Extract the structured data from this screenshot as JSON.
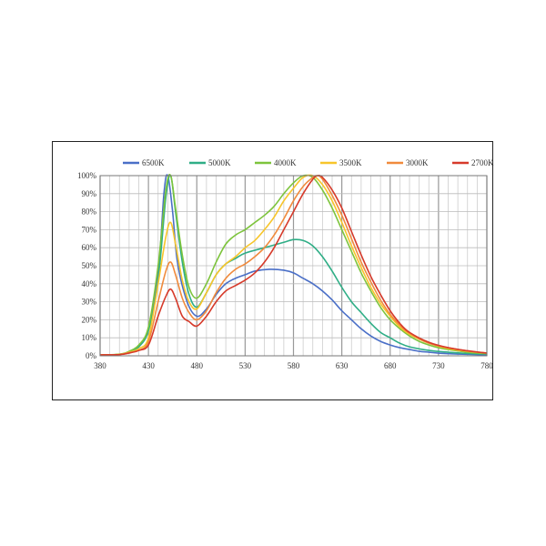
{
  "chart_data": {
    "type": "line",
    "title": "",
    "xlabel": "",
    "ylabel": "",
    "xlim": [
      380,
      780
    ],
    "ylim": [
      0,
      100
    ],
    "grid": true,
    "legend_position": "top",
    "x_ticks": [
      "380",
      "430",
      "480",
      "530",
      "580",
      "630",
      "680",
      "730",
      "780"
    ],
    "x_tick_values": [
      380,
      430,
      480,
      530,
      580,
      630,
      680,
      730,
      780
    ],
    "y_ticks": [
      "0%",
      "10%",
      "20%",
      "30%",
      "40%",
      "50%",
      "60%",
      "70%",
      "80%",
      "90%",
      "100%"
    ],
    "y_tick_values": [
      0,
      10,
      20,
      30,
      40,
      50,
      60,
      70,
      80,
      90,
      100
    ],
    "series": [
      {
        "name": "6500K",
        "color": "#4a6fc7",
        "points": [
          [
            380,
            0.5
          ],
          [
            400,
            0.8
          ],
          [
            410,
            2
          ],
          [
            420,
            5
          ],
          [
            430,
            15
          ],
          [
            440,
            45
          ],
          [
            446,
            90
          ],
          [
            450,
            100
          ],
          [
            455,
            80
          ],
          [
            460,
            52
          ],
          [
            470,
            30
          ],
          [
            480,
            22
          ],
          [
            490,
            26
          ],
          [
            500,
            34
          ],
          [
            510,
            40
          ],
          [
            520,
            43
          ],
          [
            530,
            45
          ],
          [
            540,
            47
          ],
          [
            555,
            48
          ],
          [
            570,
            47.5
          ],
          [
            580,
            46
          ],
          [
            590,
            43
          ],
          [
            600,
            40
          ],
          [
            610,
            36
          ],
          [
            620,
            31
          ],
          [
            630,
            25
          ],
          [
            640,
            20
          ],
          [
            650,
            15
          ],
          [
            660,
            11
          ],
          [
            670,
            8
          ],
          [
            680,
            6
          ],
          [
            690,
            4.5
          ],
          [
            700,
            3.5
          ],
          [
            710,
            2.5
          ],
          [
            720,
            2
          ],
          [
            730,
            1.5
          ],
          [
            750,
            1
          ],
          [
            780,
            0.5
          ]
        ]
      },
      {
        "name": "5000K",
        "color": "#2fae86",
        "points": [
          [
            380,
            0.5
          ],
          [
            400,
            0.8
          ],
          [
            410,
            2
          ],
          [
            420,
            5
          ],
          [
            430,
            14
          ],
          [
            440,
            42
          ],
          [
            448,
            88
          ],
          [
            453,
            100
          ],
          [
            458,
            80
          ],
          [
            465,
            52
          ],
          [
            472,
            34
          ],
          [
            480,
            27
          ],
          [
            490,
            35
          ],
          [
            500,
            45
          ],
          [
            510,
            51
          ],
          [
            520,
            54
          ],
          [
            530,
            57
          ],
          [
            550,
            60
          ],
          [
            570,
            63
          ],
          [
            580,
            64.5
          ],
          [
            590,
            64
          ],
          [
            600,
            61
          ],
          [
            610,
            55
          ],
          [
            620,
            47
          ],
          [
            630,
            38
          ],
          [
            640,
            30
          ],
          [
            650,
            24
          ],
          [
            660,
            18
          ],
          [
            670,
            13
          ],
          [
            680,
            10
          ],
          [
            690,
            7
          ],
          [
            700,
            5
          ],
          [
            720,
            3
          ],
          [
            740,
            2
          ],
          [
            760,
            1.3
          ],
          [
            780,
            1
          ]
        ]
      },
      {
        "name": "4000K",
        "color": "#7dc43c",
        "points": [
          [
            380,
            0.5
          ],
          [
            400,
            0.9
          ],
          [
            410,
            2.5
          ],
          [
            420,
            6
          ],
          [
            430,
            16
          ],
          [
            440,
            50
          ],
          [
            448,
            92
          ],
          [
            453,
            100
          ],
          [
            458,
            82
          ],
          [
            465,
            56
          ],
          [
            472,
            38
          ],
          [
            480,
            32
          ],
          [
            490,
            40
          ],
          [
            500,
            52
          ],
          [
            510,
            62
          ],
          [
            520,
            67
          ],
          [
            530,
            70
          ],
          [
            540,
            74
          ],
          [
            550,
            78
          ],
          [
            560,
            83
          ],
          [
            570,
            90
          ],
          [
            580,
            96
          ],
          [
            590,
            100
          ],
          [
            600,
            99
          ],
          [
            610,
            92
          ],
          [
            620,
            82
          ],
          [
            630,
            70
          ],
          [
            640,
            58
          ],
          [
            650,
            46
          ],
          [
            660,
            36
          ],
          [
            670,
            27
          ],
          [
            680,
            20
          ],
          [
            690,
            15
          ],
          [
            700,
            11
          ],
          [
            710,
            8
          ],
          [
            720,
            6
          ],
          [
            730,
            4.5
          ],
          [
            740,
            3.5
          ],
          [
            760,
            2
          ],
          [
            780,
            1.2
          ]
        ]
      },
      {
        "name": "3500K",
        "color": "#f7c52a",
        "points": [
          [
            380,
            0.5
          ],
          [
            400,
            0.8
          ],
          [
            410,
            2
          ],
          [
            420,
            4
          ],
          [
            430,
            10
          ],
          [
            440,
            40
          ],
          [
            448,
            66
          ],
          [
            453,
            74
          ],
          [
            458,
            62
          ],
          [
            465,
            42
          ],
          [
            472,
            30
          ],
          [
            480,
            26
          ],
          [
            490,
            35
          ],
          [
            500,
            45
          ],
          [
            510,
            51
          ],
          [
            520,
            55
          ],
          [
            530,
            60
          ],
          [
            540,
            64
          ],
          [
            550,
            70
          ],
          [
            560,
            77
          ],
          [
            570,
            86
          ],
          [
            580,
            93
          ],
          [
            590,
            99
          ],
          [
            600,
            100
          ],
          [
            610,
            95
          ],
          [
            620,
            86
          ],
          [
            630,
            74
          ],
          [
            640,
            61
          ],
          [
            650,
            49
          ],
          [
            660,
            38
          ],
          [
            670,
            29
          ],
          [
            680,
            22
          ],
          [
            690,
            16
          ],
          [
            700,
            12
          ],
          [
            720,
            7
          ],
          [
            740,
            4
          ],
          [
            760,
            2.5
          ],
          [
            780,
            1.5
          ]
        ]
      },
      {
        "name": "3000K",
        "color": "#f08a3c",
        "points": [
          [
            380,
            0.5
          ],
          [
            400,
            0.7
          ],
          [
            410,
            1.8
          ],
          [
            420,
            3
          ],
          [
            430,
            8
          ],
          [
            440,
            30
          ],
          [
            448,
            47
          ],
          [
            453,
            52
          ],
          [
            458,
            45
          ],
          [
            465,
            32
          ],
          [
            472,
            24
          ],
          [
            480,
            20
          ],
          [
            490,
            25
          ],
          [
            500,
            35
          ],
          [
            510,
            43
          ],
          [
            520,
            48
          ],
          [
            530,
            51
          ],
          [
            540,
            55
          ],
          [
            550,
            60
          ],
          [
            560,
            67
          ],
          [
            570,
            76
          ],
          [
            580,
            86
          ],
          [
            590,
            94
          ],
          [
            600,
            99
          ],
          [
            605,
            100
          ],
          [
            610,
            98
          ],
          [
            620,
            89
          ],
          [
            630,
            78
          ],
          [
            640,
            65
          ],
          [
            650,
            52
          ],
          [
            660,
            41
          ],
          [
            670,
            31
          ],
          [
            680,
            23
          ],
          [
            690,
            17
          ],
          [
            700,
            12.5
          ],
          [
            720,
            7
          ],
          [
            740,
            4.5
          ],
          [
            760,
            2.7
          ],
          [
            780,
            1.5
          ]
        ]
      },
      {
        "name": "2700K",
        "color": "#d63a2a",
        "points": [
          [
            380,
            0.5
          ],
          [
            400,
            0.7
          ],
          [
            410,
            1.5
          ],
          [
            420,
            3
          ],
          [
            430,
            6
          ],
          [
            440,
            22
          ],
          [
            448,
            33
          ],
          [
            453,
            37
          ],
          [
            458,
            32
          ],
          [
            465,
            22
          ],
          [
            472,
            19
          ],
          [
            480,
            16.5
          ],
          [
            490,
            22
          ],
          [
            500,
            30
          ],
          [
            510,
            36
          ],
          [
            520,
            39
          ],
          [
            530,
            42
          ],
          [
            540,
            46
          ],
          [
            550,
            52
          ],
          [
            560,
            60
          ],
          [
            570,
            70
          ],
          [
            580,
            80
          ],
          [
            590,
            90
          ],
          [
            600,
            98
          ],
          [
            605,
            100
          ],
          [
            610,
            99
          ],
          [
            620,
            92
          ],
          [
            630,
            82
          ],
          [
            640,
            69
          ],
          [
            650,
            56
          ],
          [
            660,
            44
          ],
          [
            670,
            34
          ],
          [
            680,
            25
          ],
          [
            690,
            18
          ],
          [
            700,
            13
          ],
          [
            720,
            7.5
          ],
          [
            740,
            4.5
          ],
          [
            760,
            2.8
          ],
          [
            780,
            1.5
          ]
        ]
      }
    ]
  }
}
